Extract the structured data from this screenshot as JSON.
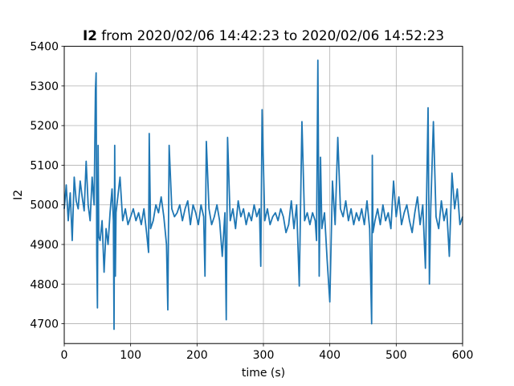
{
  "chart_data": {
    "type": "line",
    "title_bold": "I2",
    "title_rest": " from 2020/02/06 14:42:23 to 2020/02/06 14:52:23",
    "xlabel": "time (s)",
    "ylabel": "I2",
    "xlim": [
      0,
      600
    ],
    "ylim": [
      4650,
      5400
    ],
    "xticks": [
      0,
      100,
      200,
      300,
      400,
      500,
      600
    ],
    "yticks": [
      4700,
      4800,
      4900,
      5000,
      5100,
      5200,
      5300,
      5400
    ],
    "grid": true,
    "series": [
      {
        "color": "#1f77b4",
        "x": [
          0,
          3,
          6,
          9,
          12,
          15,
          18,
          21,
          24,
          27,
          30,
          33,
          36,
          39,
          42,
          45,
          47,
          48,
          49,
          50,
          51,
          52,
          54,
          57,
          60,
          63,
          66,
          69,
          72,
          74,
          75,
          76,
          77,
          78,
          80,
          84,
          88,
          92,
          96,
          100,
          104,
          108,
          112,
          116,
          120,
          124,
          127,
          128,
          130,
          134,
          138,
          142,
          146,
          150,
          154,
          156,
          158,
          162,
          166,
          170,
          174,
          178,
          182,
          186,
          190,
          194,
          198,
          202,
          206,
          210,
          212,
          214,
          218,
          222,
          226,
          230,
          234,
          238,
          242,
          244,
          246,
          250,
          254,
          258,
          262,
          266,
          270,
          274,
          278,
          282,
          286,
          290,
          294,
          296,
          298,
          302,
          306,
          310,
          314,
          318,
          322,
          326,
          330,
          334,
          338,
          342,
          346,
          350,
          354,
          358,
          362,
          366,
          370,
          374,
          378,
          380,
          382,
          384,
          386,
          388,
          392,
          396,
          400,
          404,
          408,
          412,
          416,
          420,
          424,
          428,
          432,
          436,
          440,
          444,
          448,
          452,
          456,
          460,
          463,
          464,
          465,
          468,
          472,
          476,
          480,
          484,
          488,
          492,
          496,
          500,
          504,
          508,
          512,
          516,
          520,
          524,
          528,
          532,
          536,
          540,
          544,
          548,
          550,
          552,
          556,
          560,
          564,
          568,
          572,
          576,
          580,
          584,
          588,
          592,
          596,
          600
        ],
        "values": [
          4990,
          5050,
          4960,
          5030,
          4910,
          5070,
          5010,
          4990,
          5060,
          5020,
          4985,
          5110,
          5000,
          4960,
          5070,
          5000,
          5290,
          5333,
          4870,
          4740,
          5150,
          4920,
          4910,
          4960,
          4830,
          4940,
          4900,
          4980,
          5040,
          4960,
          4686,
          5150,
          4820,
          4980,
          5010,
          5070,
          4960,
          4990,
          4950,
          4970,
          4990,
          4960,
          4980,
          4950,
          4990,
          4930,
          4880,
          5180,
          4940,
          4960,
          5000,
          4980,
          5020,
          4970,
          4900,
          4735,
          5150,
          4990,
          4970,
          4980,
          5000,
          4960,
          4990,
          5010,
          4950,
          5000,
          4980,
          4950,
          5000,
          4970,
          4820,
          5160,
          4990,
          4950,
          4970,
          5000,
          4960,
          4870,
          4980,
          4710,
          5170,
          4960,
          4990,
          4940,
          5010,
          4970,
          4990,
          4950,
          4980,
          4960,
          5000,
          4970,
          4990,
          4845,
          5240,
          4960,
          4990,
          4950,
          4970,
          4980,
          4960,
          4990,
          4970,
          4930,
          4950,
          5010,
          4940,
          5000,
          4795,
          5210,
          4960,
          4980,
          4950,
          4980,
          4960,
          4910,
          5365,
          4820,
          5120,
          4940,
          4980,
          4860,
          4755,
          5060,
          4950,
          5170,
          4990,
          4970,
          5010,
          4960,
          4990,
          4950,
          4980,
          4960,
          4990,
          4950,
          5010,
          4940,
          4700,
          5125,
          4930,
          4960,
          4990,
          4950,
          5000,
          4960,
          4980,
          4940,
          5060,
          4970,
          5020,
          4950,
          4980,
          5000,
          4960,
          4930,
          4980,
          5020,
          4950,
          5000,
          4840,
          5245,
          4800,
          4990,
          5210,
          4970,
          4940,
          5010,
          4960,
          4990,
          4870,
          5080,
          4990,
          5040,
          4950,
          4970
        ]
      }
    ]
  }
}
